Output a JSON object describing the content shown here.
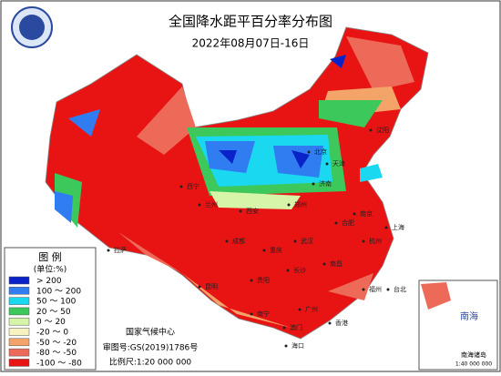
{
  "header": {
    "title": "全国降水距平百分率分布图",
    "subtitle": "2022年08月07日-16日"
  },
  "legend": {
    "title": "图 例",
    "unit": "(单位:%)",
    "items": [
      {
        "label": "> 200",
        "color": "#0a23c8"
      },
      {
        "label": "100 ～ 200",
        "color": "#2f7df0"
      },
      {
        "label": "50 ～ 100",
        "color": "#19d8f0"
      },
      {
        "label": "20 ～ 50",
        "color": "#3cc85a"
      },
      {
        "label": "0 ～ 20",
        "color": "#d6f5a8"
      },
      {
        "label": "-20 ～ 0",
        "color": "#f7f2c0"
      },
      {
        "label": "-50 ～ -20",
        "color": "#f4a468"
      },
      {
        "label": "-80 ～ -50",
        "color": "#ee6a58"
      },
      {
        "label": "-100 ～ -80",
        "color": "#e81414"
      }
    ]
  },
  "cities": [
    "沈阳",
    "北京",
    "天津",
    "济南",
    "郑州",
    "西安",
    "武汉",
    "长沙",
    "南昌",
    "合肥",
    "南京",
    "上海",
    "杭州",
    "福州",
    "台北",
    "广州",
    "香港",
    "澳门",
    "海口",
    "南宁",
    "贵阳",
    "重庆",
    "成都",
    "昆明",
    "拉萨",
    "西宁",
    "兰州"
  ],
  "footer": {
    "agency": "国家气候中心",
    "approval": "审图号:GS(2019)1786号",
    "scale": "比例尺:1:20 000 000"
  },
  "inset": {
    "sea": "南海",
    "islands": "南海诸岛",
    "scale": "1:40 000 000"
  }
}
